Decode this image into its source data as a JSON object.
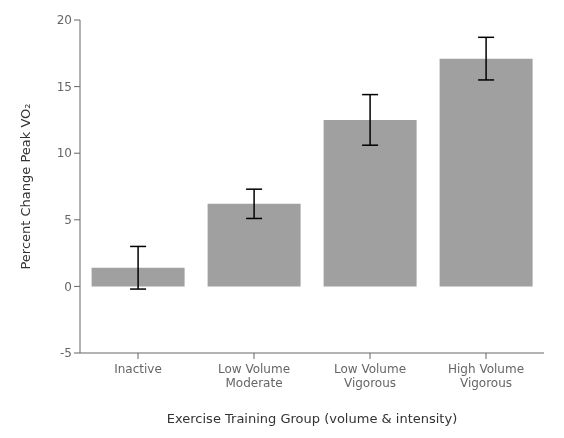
{
  "chart_data": {
    "type": "bar",
    "categories": [
      "Inactive",
      "Low Volume\nModerate",
      "Low Volume\nVigorous",
      "High Volume\nVigorous"
    ],
    "values": [
      1.4,
      6.2,
      12.5,
      17.1
    ],
    "errors": [
      1.6,
      1.1,
      1.9,
      1.6
    ],
    "color": "#a0a0a0",
    "xlabel": "Exercise Training Group (volume & intensity)",
    "ylabel": "Percent Change Peak VO₂",
    "ylim": [
      -5,
      20
    ],
    "yticks": [
      -5,
      0,
      5,
      10,
      15,
      20
    ],
    "grid": false
  }
}
